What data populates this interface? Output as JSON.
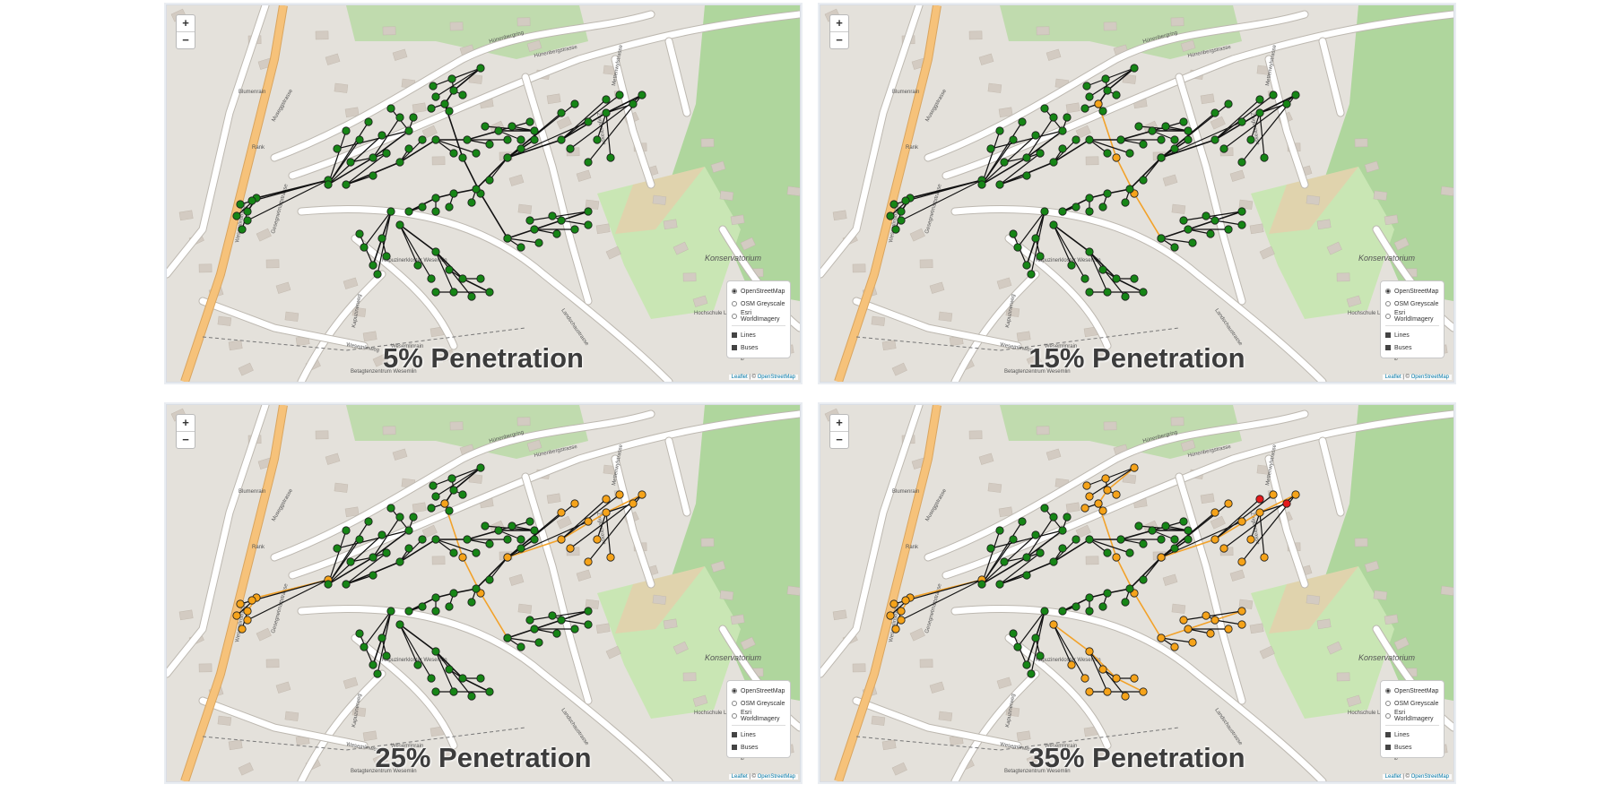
{
  "controls": {
    "zoom_in": "+",
    "zoom_out": "−"
  },
  "layers": {
    "base": [
      "OpenStreetMap",
      "OSM Greyscale",
      "Esri WorldImagery"
    ],
    "selected_base": "OpenStreetMap",
    "overlays": [
      "Lines",
      "Buses"
    ],
    "overlays_checked": [
      true,
      true
    ]
  },
  "attribution": {
    "leaflet": "Leaflet",
    "sep": " | © ",
    "osm": "OpenStreetMap"
  },
  "street_labels": [
    "Hünenbergring",
    "Hünenbergstrasse",
    "Blumenrain",
    "Wesemlinstrasse",
    "Gesegnetmattstrasse",
    "Dreilindenstrasse",
    "Landschaustrasse",
    "Konservatorium",
    "Hochschule Luzern",
    "Wesemlinrain",
    "Kapuzinerweg",
    "Zeigerstrasse",
    "Mettenwylstrasse",
    "Rank",
    "Wesemlinweg",
    "Betagtenzentrum Wesemlin",
    "Kapuzinerkloster Wesemlin",
    "Museggstrasse"
  ],
  "colors": {
    "ok": "#168516",
    "warn": "#f5a31a",
    "crit": "#e31a1c",
    "line": "#111111",
    "line_warn": "#f2a22a",
    "park": "#c9e6b4",
    "forest": "#a9d596",
    "road": "#ffffff",
    "major": "#f6c27a"
  },
  "panels": [
    {
      "caption": "5% Penetration",
      "penetration": 5,
      "orange_clusters": [],
      "red_count": 0
    },
    {
      "caption": "15% Penetration",
      "penetration": 15,
      "orange_clusters": [
        "feeder-center"
      ],
      "red_count": 0
    },
    {
      "caption": "25% Penetration",
      "penetration": 25,
      "orange_clusters": [
        "feeder-center",
        "west",
        "east"
      ],
      "red_count": 0
    },
    {
      "caption": "35% Penetration",
      "penetration": 35,
      "orange_clusters": [
        "feeder-center",
        "west",
        "east",
        "north",
        "southeast",
        "south"
      ],
      "red_count": 2
    }
  ]
}
